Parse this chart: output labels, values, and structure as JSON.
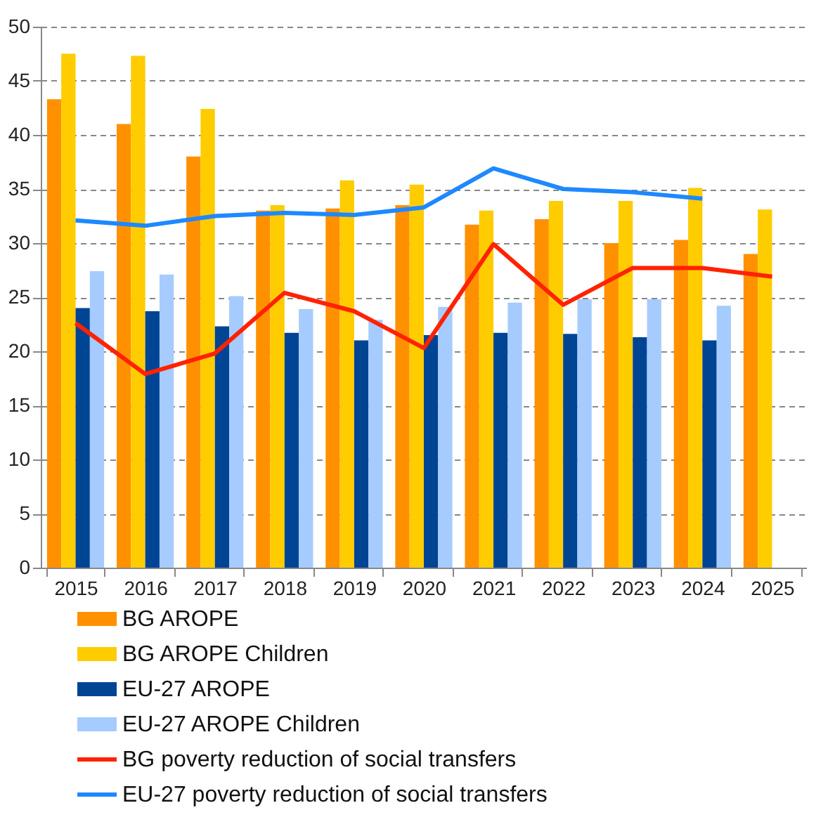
{
  "chart_data": {
    "type": "bar",
    "categories": [
      "2015",
      "2016",
      "2017",
      "2018",
      "2019",
      "2020",
      "2021",
      "2022",
      "2023",
      "2024",
      "2025"
    ],
    "series": [
      {
        "name": "BG AROPE",
        "color": "#ff9100",
        "values": [
          43.3,
          41.0,
          38.0,
          33.0,
          33.2,
          33.5,
          31.7,
          32.2,
          30.0,
          30.3,
          29.0
        ]
      },
      {
        "name": "BG AROPE Children",
        "color": "#ffcc00",
        "values": [
          47.5,
          47.3,
          42.4,
          33.5,
          35.8,
          35.4,
          33.0,
          33.9,
          33.9,
          35.1,
          33.1
        ]
      },
      {
        "name": "EU-27 AROPE",
        "color": "#004494",
        "values": [
          24.0,
          23.7,
          22.3,
          21.7,
          21.0,
          21.5,
          21.7,
          21.6,
          21.3,
          21.0,
          null
        ]
      },
      {
        "name": "EU-27 AROPE Children",
        "color": "#a6cbff",
        "values": [
          27.4,
          27.1,
          25.1,
          23.9,
          22.9,
          24.1,
          24.5,
          24.8,
          24.8,
          24.2,
          null
        ]
      },
      {
        "name": "BG poverty reduction of social transfers",
        "color": "#ff2200",
        "type": "line",
        "values": [
          22.6,
          17.9,
          19.8,
          25.4,
          23.7,
          20.3,
          29.9,
          24.3,
          27.7,
          27.7,
          26.9
        ]
      },
      {
        "name": "EU-27 poverty reduction of social transfers",
        "color": "#1e88ff",
        "type": "line",
        "values": [
          32.1,
          31.6,
          32.5,
          32.8,
          32.6,
          33.3,
          36.9,
          35.0,
          34.7,
          34.1,
          null
        ]
      }
    ],
    "ylim": [
      0,
      50
    ],
    "yticks": [
      0,
      5,
      10,
      15,
      20,
      25,
      30,
      35,
      40,
      45,
      50
    ],
    "grid": "y",
    "legend": "bottom",
    "marker": "none",
    "line_style": "solid"
  }
}
